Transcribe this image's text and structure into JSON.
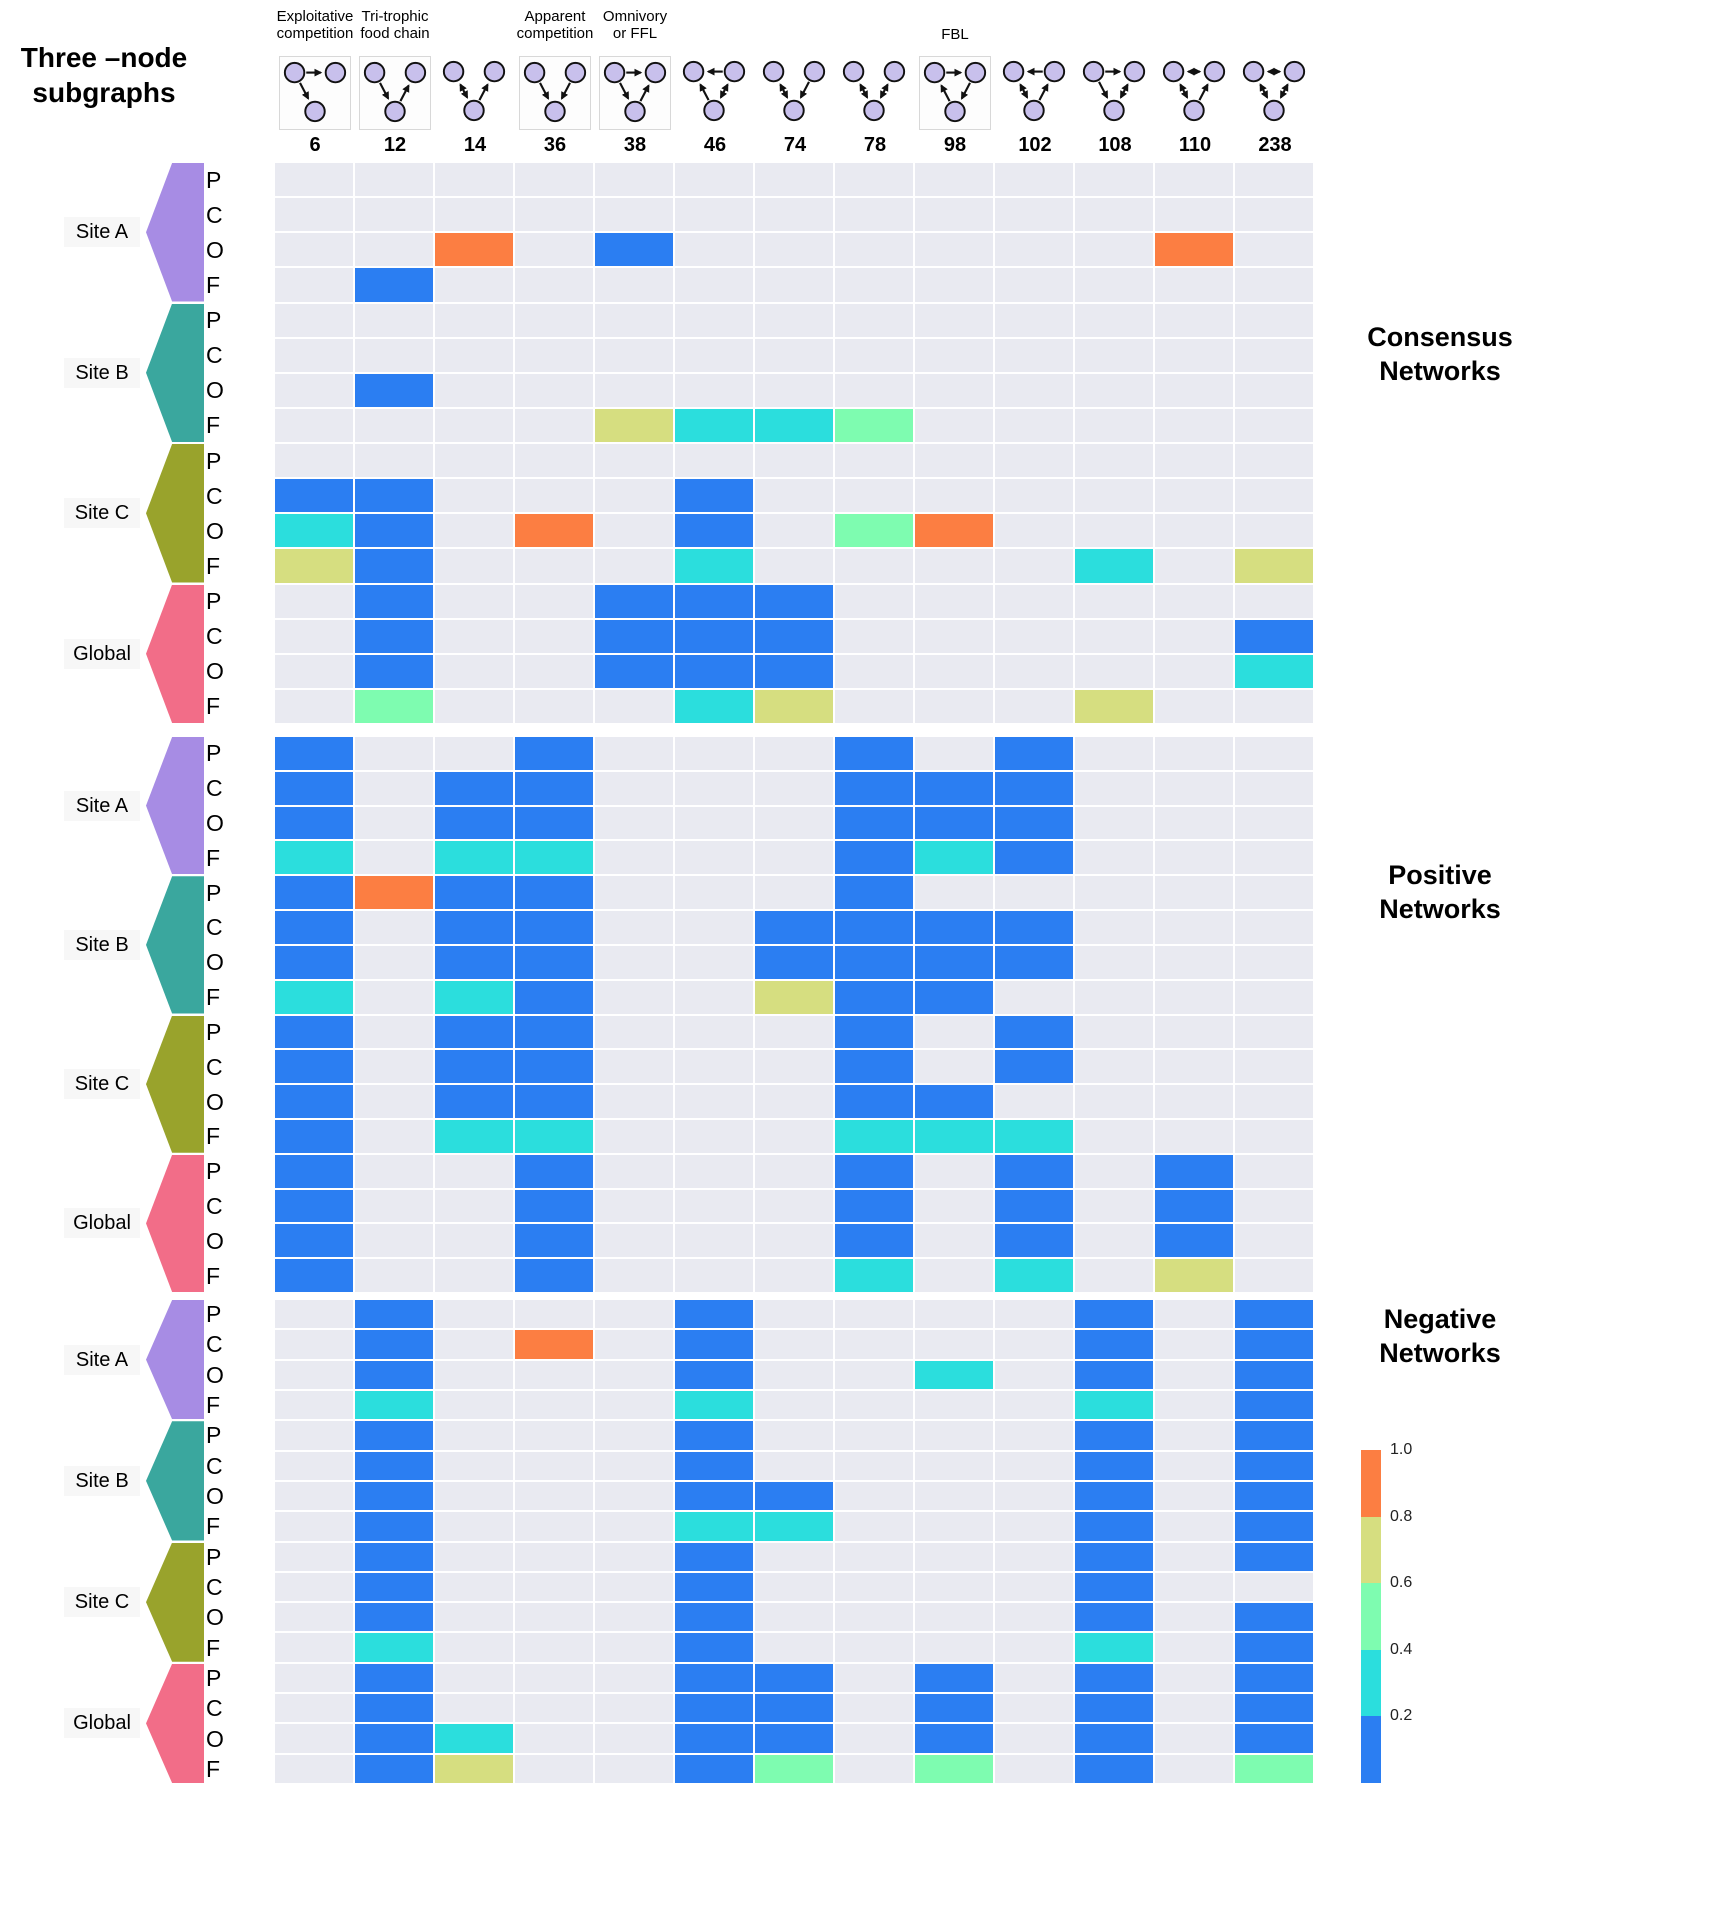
{
  "title": "Three –node\nsubgraphs",
  "sections": {
    "consensus": "Consensus\nNetworks",
    "positive": "Positive\nNetworks",
    "negative": "Negative\nNetworks"
  },
  "motif_groups": [
    {
      "label": "Exploitative\ncompetition",
      "col": 0
    },
    {
      "label": "Tri-trophic\nfood chain",
      "col": 1
    },
    {
      "label": "Apparent\ncompetition",
      "col": 3
    },
    {
      "label": "Omnivory\nor FFL",
      "col": 4
    },
    {
      "label": "FBL",
      "col": 8
    }
  ],
  "motifs": [
    {
      "id": "6",
      "boxed": true,
      "edges": [
        [
          "TL",
          "TR",
          "s"
        ],
        [
          "TL",
          "B",
          "s"
        ]
      ]
    },
    {
      "id": "12",
      "boxed": true,
      "edges": [
        [
          "TL",
          "B",
          "s"
        ],
        [
          "B",
          "TR",
          "s"
        ]
      ]
    },
    {
      "id": "14",
      "boxed": false,
      "edges": [
        [
          "TL",
          "B",
          "m"
        ],
        [
          "B",
          "TR",
          "s"
        ]
      ]
    },
    {
      "id": "36",
      "boxed": true,
      "edges": [
        [
          "TL",
          "B",
          "s"
        ],
        [
          "TR",
          "B",
          "s"
        ]
      ]
    },
    {
      "id": "38",
      "boxed": true,
      "edges": [
        [
          "TL",
          "TR",
          "s"
        ],
        [
          "TL",
          "B",
          "s"
        ],
        [
          "B",
          "TR",
          "s"
        ]
      ]
    },
    {
      "id": "46",
      "boxed": false,
      "edges": [
        [
          "TR",
          "TL",
          "s"
        ],
        [
          "TR",
          "B",
          "m"
        ],
        [
          "B",
          "TL",
          "s"
        ]
      ]
    },
    {
      "id": "74",
      "boxed": false,
      "edges": [
        [
          "TL",
          "B",
          "m"
        ],
        [
          "TR",
          "B",
          "s"
        ]
      ]
    },
    {
      "id": "78",
      "boxed": false,
      "edges": [
        [
          "TL",
          "B",
          "m"
        ],
        [
          "TR",
          "B",
          "m"
        ]
      ]
    },
    {
      "id": "98",
      "boxed": true,
      "edges": [
        [
          "TL",
          "TR",
          "s"
        ],
        [
          "TR",
          "B",
          "s"
        ],
        [
          "B",
          "TL",
          "s"
        ]
      ]
    },
    {
      "id": "102",
      "boxed": false,
      "edges": [
        [
          "TR",
          "TL",
          "s"
        ],
        [
          "TL",
          "B",
          "m"
        ],
        [
          "B",
          "TR",
          "s"
        ]
      ]
    },
    {
      "id": "108",
      "boxed": false,
      "edges": [
        [
          "TL",
          "TR",
          "s"
        ],
        [
          "TL",
          "B",
          "s"
        ],
        [
          "TR",
          "B",
          "m"
        ]
      ]
    },
    {
      "id": "110",
      "boxed": false,
      "edges": [
        [
          "TL",
          "TR",
          "m"
        ],
        [
          "TL",
          "B",
          "m"
        ],
        [
          "B",
          "TR",
          "s"
        ]
      ]
    },
    {
      "id": "238",
      "boxed": false,
      "edges": [
        [
          "TL",
          "TR",
          "m"
        ],
        [
          "TL",
          "B",
          "m"
        ],
        [
          "TR",
          "B",
          "m"
        ]
      ]
    }
  ],
  "sites": [
    {
      "name": "Site A",
      "color": "#a78ce4"
    },
    {
      "name": "Site B",
      "color": "#3aa79e"
    },
    {
      "name": "Site C",
      "color": "#99a32c"
    },
    {
      "name": "Global",
      "color": "#f26d88"
    }
  ],
  "row_labels": [
    "P",
    "C",
    "O",
    "F"
  ],
  "legend": {
    "ticks": [
      "1.0",
      "0.8",
      "0.6",
      "0.4",
      "0.2"
    ],
    "segment_colors": [
      "#fc7e42",
      "#d6de80",
      "#7efcb0",
      "#2bdedd",
      "#2b7ef2"
    ]
  },
  "palette": {
    "node_fill": "#c8c0ec",
    "node_stroke": "#111111",
    "empty_cell": "#e9eaf1",
    "bin_0_2": "#2b7ef2",
    "bin_0_4": "#2bdedd",
    "bin_0_6": "#7efcb0",
    "bin_0_8": "#d6de80",
    "bin_1_0": "#fc7e42"
  },
  "chart_data": {
    "type": "heatmap",
    "title": "Frequency of three-node subgraphs across consensus, positive and negative networks",
    "columns": [
      "6",
      "12",
      "14",
      "36",
      "38",
      "46",
      "74",
      "78",
      "98",
      "102",
      "108",
      "110",
      "238"
    ],
    "row_groups": [
      "Site A",
      "Site B",
      "Site C",
      "Global"
    ],
    "row_levels": [
      "P",
      "C",
      "O",
      "F"
    ],
    "value_bins": [
      0.2,
      0.4,
      0.6,
      0.8,
      1.0
    ],
    "bin_colors": {
      "0.2": "#2b7ef2",
      "0.4": "#2bdedd",
      "0.6": "#7efcb0",
      "0.8": "#d6de80",
      "1": "#fc7e42"
    },
    "legend_ticks": [
      1.0,
      0.8,
      0.6,
      0.4,
      0.2
    ],
    "grids": {
      "consensus": [
        [
          null,
          null,
          null,
          null,
          null,
          null,
          null,
          null,
          null,
          null,
          null,
          null,
          null
        ],
        [
          null,
          null,
          null,
          null,
          null,
          null,
          null,
          null,
          null,
          null,
          null,
          null,
          null
        ],
        [
          null,
          null,
          1,
          null,
          0.2,
          null,
          null,
          null,
          null,
          null,
          null,
          1,
          null
        ],
        [
          null,
          0.2,
          null,
          null,
          null,
          null,
          null,
          null,
          null,
          null,
          null,
          null,
          null
        ],
        [
          null,
          null,
          null,
          null,
          null,
          null,
          null,
          null,
          null,
          null,
          null,
          null,
          null
        ],
        [
          null,
          null,
          null,
          null,
          null,
          null,
          null,
          null,
          null,
          null,
          null,
          null,
          null
        ],
        [
          null,
          0.2,
          null,
          null,
          null,
          null,
          null,
          null,
          null,
          null,
          null,
          null,
          null
        ],
        [
          null,
          null,
          null,
          null,
          0.8,
          0.4,
          0.4,
          0.6,
          null,
          null,
          null,
          null,
          null
        ],
        [
          null,
          null,
          null,
          null,
          null,
          null,
          null,
          null,
          null,
          null,
          null,
          null,
          null
        ],
        [
          0.2,
          0.2,
          null,
          null,
          null,
          0.2,
          null,
          null,
          null,
          null,
          null,
          null,
          null
        ],
        [
          0.4,
          0.2,
          null,
          1,
          null,
          0.2,
          null,
          0.6,
          1,
          null,
          null,
          null,
          null
        ],
        [
          0.8,
          0.2,
          null,
          null,
          null,
          0.4,
          null,
          null,
          null,
          null,
          0.4,
          null,
          0.8
        ],
        [
          null,
          0.2,
          null,
          null,
          0.2,
          0.2,
          0.2,
          null,
          null,
          null,
          null,
          null,
          null
        ],
        [
          null,
          0.2,
          null,
          null,
          0.2,
          0.2,
          0.2,
          null,
          null,
          null,
          null,
          null,
          0.2
        ],
        [
          null,
          0.2,
          null,
          null,
          0.2,
          0.2,
          0.2,
          null,
          null,
          null,
          null,
          null,
          0.4
        ],
        [
          null,
          0.6,
          null,
          null,
          null,
          0.4,
          0.8,
          null,
          null,
          null,
          0.8,
          null,
          null
        ]
      ],
      "positive": [
        [
          0.2,
          null,
          null,
          0.2,
          null,
          null,
          null,
          0.2,
          null,
          0.2,
          null,
          null,
          null
        ],
        [
          0.2,
          null,
          0.2,
          0.2,
          null,
          null,
          null,
          0.2,
          0.2,
          0.2,
          null,
          null,
          null
        ],
        [
          0.2,
          null,
          0.2,
          0.2,
          null,
          null,
          null,
          0.2,
          0.2,
          0.2,
          null,
          null,
          null
        ],
        [
          0.4,
          null,
          0.4,
          0.4,
          null,
          null,
          null,
          0.2,
          0.4,
          0.2,
          null,
          null,
          null
        ],
        [
          0.2,
          1,
          0.2,
          0.2,
          null,
          null,
          null,
          0.2,
          null,
          null,
          null,
          null,
          null
        ],
        [
          0.2,
          null,
          0.2,
          0.2,
          null,
          null,
          0.2,
          0.2,
          0.2,
          0.2,
          null,
          null,
          null
        ],
        [
          0.2,
          null,
          0.2,
          0.2,
          null,
          null,
          0.2,
          0.2,
          0.2,
          0.2,
          null,
          null,
          null
        ],
        [
          0.4,
          null,
          0.4,
          0.2,
          null,
          null,
          0.8,
          0.2,
          0.2,
          null,
          null,
          null,
          null
        ],
        [
          0.2,
          null,
          0.2,
          0.2,
          null,
          null,
          null,
          0.2,
          null,
          0.2,
          null,
          null,
          null
        ],
        [
          0.2,
          null,
          0.2,
          0.2,
          null,
          null,
          null,
          0.2,
          null,
          0.2,
          null,
          null,
          null
        ],
        [
          0.2,
          null,
          0.2,
          0.2,
          null,
          null,
          null,
          0.2,
          0.2,
          null,
          null,
          null,
          null
        ],
        [
          0.2,
          null,
          0.4,
          0.4,
          null,
          null,
          null,
          0.4,
          0.4,
          0.4,
          null,
          null,
          null
        ],
        [
          0.2,
          null,
          null,
          0.2,
          null,
          null,
          null,
          0.2,
          null,
          0.2,
          null,
          0.2,
          null
        ],
        [
          0.2,
          null,
          null,
          0.2,
          null,
          null,
          null,
          0.2,
          null,
          0.2,
          null,
          0.2,
          null
        ],
        [
          0.2,
          null,
          null,
          0.2,
          null,
          null,
          null,
          0.2,
          null,
          0.2,
          null,
          0.2,
          null
        ],
        [
          0.2,
          null,
          null,
          0.2,
          null,
          null,
          null,
          0.4,
          null,
          0.4,
          null,
          0.8,
          null
        ]
      ],
      "negative": [
        [
          null,
          0.2,
          null,
          null,
          null,
          0.2,
          null,
          null,
          null,
          null,
          0.2,
          null,
          0.2
        ],
        [
          null,
          0.2,
          null,
          1,
          null,
          0.2,
          null,
          null,
          null,
          null,
          0.2,
          null,
          0.2
        ],
        [
          null,
          0.2,
          null,
          null,
          null,
          0.2,
          null,
          null,
          0.4,
          null,
          0.2,
          null,
          0.2
        ],
        [
          null,
          0.4,
          null,
          null,
          null,
          0.4,
          null,
          null,
          null,
          null,
          0.4,
          null,
          0.2
        ],
        [
          null,
          0.2,
          null,
          null,
          null,
          0.2,
          null,
          null,
          null,
          null,
          0.2,
          null,
          0.2
        ],
        [
          null,
          0.2,
          null,
          null,
          null,
          0.2,
          null,
          null,
          null,
          null,
          0.2,
          null,
          0.2
        ],
        [
          null,
          0.2,
          null,
          null,
          null,
          0.2,
          0.2,
          null,
          null,
          null,
          0.2,
          null,
          0.2
        ],
        [
          null,
          0.2,
          null,
          null,
          null,
          0.4,
          0.4,
          null,
          null,
          null,
          0.2,
          null,
          0.2
        ],
        [
          null,
          0.2,
          null,
          null,
          null,
          0.2,
          null,
          null,
          null,
          null,
          0.2,
          null,
          0.2
        ],
        [
          null,
          0.2,
          null,
          null,
          null,
          0.2,
          null,
          null,
          null,
          null,
          0.2,
          null,
          null
        ],
        [
          null,
          0.2,
          null,
          null,
          null,
          0.2,
          null,
          null,
          null,
          null,
          0.2,
          null,
          0.2
        ],
        [
          null,
          0.4,
          null,
          null,
          null,
          0.2,
          null,
          null,
          null,
          null,
          0.4,
          null,
          0.2
        ],
        [
          null,
          0.2,
          null,
          null,
          null,
          0.2,
          0.2,
          null,
          0.2,
          null,
          0.2,
          null,
          0.2
        ],
        [
          null,
          0.2,
          null,
          null,
          null,
          0.2,
          0.2,
          null,
          0.2,
          null,
          0.2,
          null,
          0.2
        ],
        [
          null,
          0.2,
          0.4,
          null,
          null,
          0.2,
          0.2,
          null,
          0.2,
          null,
          0.2,
          null,
          0.2
        ],
        [
          null,
          0.2,
          0.8,
          null,
          null,
          0.2,
          0.6,
          null,
          0.6,
          null,
          0.2,
          null,
          0.6
        ]
      ]
    }
  }
}
